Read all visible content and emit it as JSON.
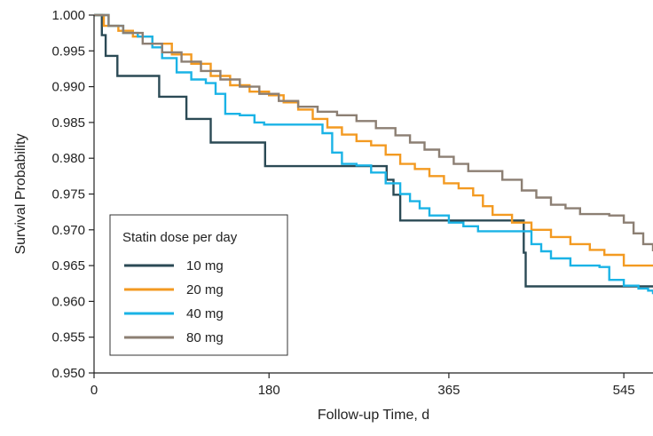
{
  "chart_data": {
    "type": "line",
    "step": true,
    "xlabel": "Follow-up Time, d",
    "ylabel": "Survival Probability",
    "xlim": [
      0,
      575
    ],
    "ylim": [
      0.95,
      1.0
    ],
    "xticks": [
      0,
      180,
      365,
      545
    ],
    "xtick_labels": [
      "0",
      "180",
      "365",
      "545"
    ],
    "yticks": [
      0.95,
      0.955,
      0.96,
      0.965,
      0.97,
      0.975,
      0.98,
      0.985,
      0.99,
      0.995,
      1.0
    ],
    "ytick_labels": [
      "0.950",
      "0.955",
      "0.960",
      "0.965",
      "0.970",
      "0.975",
      "0.980",
      "0.985",
      "0.990",
      "0.995",
      "1.000"
    ],
    "grid": false,
    "legend": {
      "title": "Statin dose per day",
      "placement": "bottom-left"
    },
    "series": [
      {
        "name": "10 mg",
        "color": "#2b4a55",
        "points": [
          [
            0,
            1.0
          ],
          [
            8,
            0.9972
          ],
          [
            12,
            0.9943
          ],
          [
            24,
            0.9915
          ],
          [
            67,
            0.9886
          ],
          [
            95,
            0.9855
          ],
          [
            120,
            0.9822
          ],
          [
            176,
            0.9789
          ],
          [
            301,
            0.977
          ],
          [
            308,
            0.9749
          ],
          [
            315,
            0.9713
          ],
          [
            442,
            0.9668
          ],
          [
            444,
            0.9621
          ],
          [
            575,
            0.9621
          ]
        ]
      },
      {
        "name": "20 mg",
        "color": "#f39a21",
        "points": [
          [
            0,
            1.0
          ],
          [
            10,
            0.9985
          ],
          [
            25,
            0.9978
          ],
          [
            40,
            0.997
          ],
          [
            60,
            0.996
          ],
          [
            80,
            0.9945
          ],
          [
            100,
            0.9932
          ],
          [
            120,
            0.9915
          ],
          [
            140,
            0.9902
          ],
          [
            160,
            0.9893
          ],
          [
            180,
            0.9888
          ],
          [
            195,
            0.9878
          ],
          [
            210,
            0.9868
          ],
          [
            225,
            0.9855
          ],
          [
            240,
            0.9843
          ],
          [
            255,
            0.9833
          ],
          [
            270,
            0.9824
          ],
          [
            285,
            0.9818
          ],
          [
            300,
            0.9805
          ],
          [
            315,
            0.9792
          ],
          [
            330,
            0.9785
          ],
          [
            345,
            0.9775
          ],
          [
            360,
            0.9765
          ],
          [
            375,
            0.9758
          ],
          [
            390,
            0.9748
          ],
          [
            400,
            0.9733
          ],
          [
            410,
            0.9721
          ],
          [
            430,
            0.971
          ],
          [
            450,
            0.97
          ],
          [
            470,
            0.969
          ],
          [
            490,
            0.968
          ],
          [
            510,
            0.9672
          ],
          [
            525,
            0.9665
          ],
          [
            545,
            0.965
          ],
          [
            575,
            0.965
          ]
        ]
      },
      {
        "name": "40 mg",
        "color": "#1ab3e6",
        "points": [
          [
            0,
            1.0
          ],
          [
            15,
            0.9985
          ],
          [
            30,
            0.9975
          ],
          [
            45,
            0.997
          ],
          [
            60,
            0.9955
          ],
          [
            70,
            0.994
          ],
          [
            85,
            0.992
          ],
          [
            100,
            0.991
          ],
          [
            115,
            0.9905
          ],
          [
            125,
            0.989
          ],
          [
            135,
            0.9862
          ],
          [
            150,
            0.986
          ],
          [
            165,
            0.985
          ],
          [
            175,
            0.9847
          ],
          [
            225,
            0.9847
          ],
          [
            235,
            0.9835
          ],
          [
            245,
            0.9808
          ],
          [
            255,
            0.9792
          ],
          [
            270,
            0.979
          ],
          [
            285,
            0.978
          ],
          [
            300,
            0.9765
          ],
          [
            315,
            0.975
          ],
          [
            325,
            0.974
          ],
          [
            335,
            0.973
          ],
          [
            345,
            0.972
          ],
          [
            365,
            0.971
          ],
          [
            380,
            0.9705
          ],
          [
            395,
            0.9698
          ],
          [
            440,
            0.9698
          ],
          [
            450,
            0.968
          ],
          [
            460,
            0.967
          ],
          [
            470,
            0.966
          ],
          [
            490,
            0.965
          ],
          [
            520,
            0.9648
          ],
          [
            530,
            0.963
          ],
          [
            545,
            0.9622
          ],
          [
            560,
            0.9618
          ],
          [
            570,
            0.9615
          ],
          [
            575,
            0.961
          ]
        ]
      },
      {
        "name": "80 mg",
        "color": "#8c7f73",
        "points": [
          [
            0,
            1.0
          ],
          [
            15,
            0.9985
          ],
          [
            30,
            0.9975
          ],
          [
            50,
            0.996
          ],
          [
            70,
            0.9948
          ],
          [
            90,
            0.9935
          ],
          [
            110,
            0.9922
          ],
          [
            130,
            0.991
          ],
          [
            150,
            0.99
          ],
          [
            170,
            0.989
          ],
          [
            190,
            0.988
          ],
          [
            210,
            0.9872
          ],
          [
            230,
            0.9865
          ],
          [
            250,
            0.986
          ],
          [
            270,
            0.9852
          ],
          [
            290,
            0.9842
          ],
          [
            310,
            0.9832
          ],
          [
            325,
            0.9822
          ],
          [
            340,
            0.9812
          ],
          [
            355,
            0.9802
          ],
          [
            370,
            0.9792
          ],
          [
            385,
            0.9782
          ],
          [
            400,
            0.9782
          ],
          [
            420,
            0.977
          ],
          [
            440,
            0.9755
          ],
          [
            455,
            0.9745
          ],
          [
            470,
            0.9735
          ],
          [
            485,
            0.973
          ],
          [
            500,
            0.9722
          ],
          [
            530,
            0.972
          ],
          [
            545,
            0.971
          ],
          [
            555,
            0.9695
          ],
          [
            565,
            0.968
          ],
          [
            575,
            0.967
          ]
        ]
      }
    ]
  }
}
